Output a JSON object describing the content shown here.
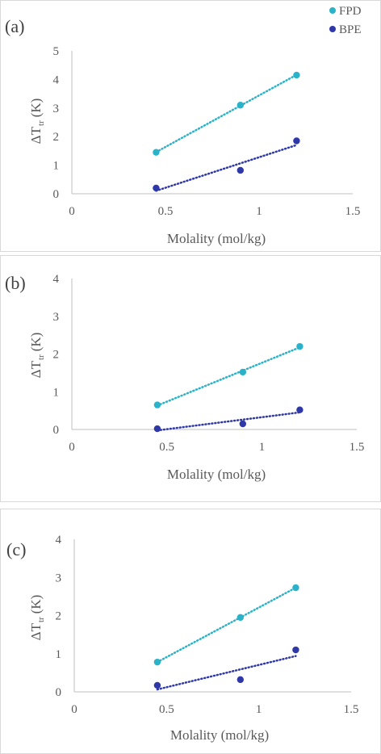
{
  "colors": {
    "FPD": "#2ab3c8",
    "BPE": "#2e38a8"
  },
  "legend": [
    {
      "name": "FPD",
      "color": "#2ab3c8"
    },
    {
      "name": "BPE",
      "color": "#2e38a8"
    }
  ],
  "chart_data": [
    {
      "type": "scatter",
      "label": "(a)",
      "xlabel": "Molality (mol/kg)",
      "ylabel": "ΔTtr (K)",
      "ylabel_main": "ΔT",
      "ylabel_sub": "tr",
      "ylabel_unit": "(K)",
      "xlim": [
        0,
        1.5
      ],
      "ylim": [
        0,
        5
      ],
      "xticks": [
        "0",
        "0.5",
        "1",
        "1.5"
      ],
      "yticks": [
        "0",
        "1",
        "2",
        "3",
        "4",
        "5"
      ],
      "series": [
        {
          "name": "FPD",
          "x": [
            0.45,
            0.9,
            1.2
          ],
          "y": [
            1.45,
            3.1,
            4.15
          ],
          "trendline": true
        },
        {
          "name": "BPE",
          "x": [
            0.45,
            0.9,
            1.2
          ],
          "y": [
            0.2,
            0.82,
            1.85
          ],
          "trendline": true
        }
      ]
    },
    {
      "type": "scatter",
      "label": "(b)",
      "xlabel": "Molality (mol/kg)",
      "ylabel": "ΔTtr (K)",
      "ylabel_main": "ΔT",
      "ylabel_sub": "tr",
      "ylabel_unit": "(K)",
      "xlim": [
        0,
        1.5
      ],
      "ylim": [
        0,
        4
      ],
      "xticks": [
        "0",
        "0.5",
        "1",
        "1.5"
      ],
      "yticks": [
        "0",
        "1",
        "2",
        "3",
        "4"
      ],
      "series": [
        {
          "name": "FPD",
          "x": [
            0.45,
            0.9,
            1.2
          ],
          "y": [
            0.65,
            1.52,
            2.2
          ],
          "trendline": true
        },
        {
          "name": "BPE",
          "x": [
            0.45,
            0.9,
            1.2
          ],
          "y": [
            0.02,
            0.15,
            0.52
          ],
          "trendline": true
        }
      ]
    },
    {
      "type": "scatter",
      "label": "(c)",
      "xlabel": "Molality (mol/kg)",
      "ylabel": "ΔTtr (K)",
      "ylabel_main": "ΔT",
      "ylabel_sub": "tr",
      "ylabel_unit": "(K)",
      "xlim": [
        0,
        1.5
      ],
      "ylim": [
        0,
        4
      ],
      "xticks": [
        "0",
        "0.5",
        "1",
        "1.5"
      ],
      "yticks": [
        "0",
        "1",
        "2",
        "3",
        "4"
      ],
      "series": [
        {
          "name": "FPD",
          "x": [
            0.45,
            0.9,
            1.2
          ],
          "y": [
            0.78,
            1.95,
            2.73
          ],
          "trendline": true
        },
        {
          "name": "BPE",
          "x": [
            0.45,
            0.9,
            1.2
          ],
          "y": [
            0.17,
            0.32,
            1.1
          ],
          "trendline": true
        }
      ]
    }
  ]
}
